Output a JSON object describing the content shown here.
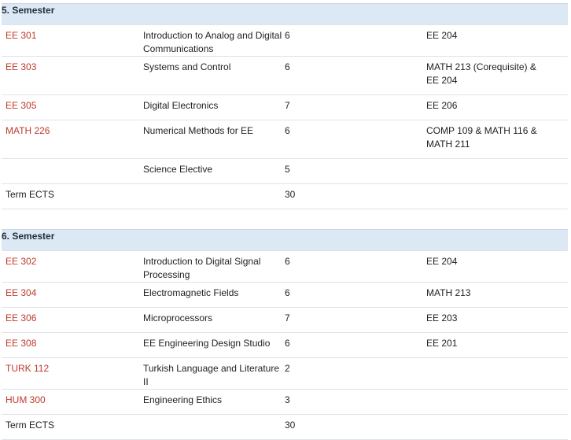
{
  "semesters": [
    {
      "title": "5. Semester",
      "courses": [
        {
          "code": "EE 301",
          "name": "Introduction to Analog and Digital Communications",
          "ects": "6",
          "prereq": "EE 204"
        },
        {
          "code": "EE 303",
          "name": "Systems and Control",
          "ects": "6",
          "prereq": "MATH 213 (Corequisite) & EE 204"
        },
        {
          "code": "EE 305",
          "name": "Digital Electronics",
          "ects": "7",
          "prereq": "EE 206"
        },
        {
          "code": "MATH 226",
          "name": "Numerical Methods for EE",
          "ects": "6",
          "prereq": "COMP 109 & MATH 116 & MATH 211"
        },
        {
          "code": "",
          "name": "Science Elective",
          "ects": "5",
          "prereq": ""
        }
      ],
      "total_label": "Term ECTS",
      "total_value": "30"
    },
    {
      "title": "6. Semester",
      "courses": [
        {
          "code": "EE 302",
          "name": "Introduction to Digital Signal Processing",
          "ects": "6",
          "prereq": "EE 204"
        },
        {
          "code": "EE 304",
          "name": "Electromagnetic Fields",
          "ects": "6",
          "prereq": "MATH 213"
        },
        {
          "code": "EE 306",
          "name": "Microprocessors",
          "ects": "7",
          "prereq": "EE 203"
        },
        {
          "code": "EE 308",
          "name": "EE Engineering Design Studio",
          "ects": "6",
          "prereq": "EE 201"
        },
        {
          "code": "TURK 112",
          "name": "Turkish Language and Literature II",
          "ects": "2",
          "prereq": ""
        },
        {
          "code": "HUM 300",
          "name": "Engineering Ethics",
          "ects": "3",
          "prereq": ""
        }
      ],
      "total_label": "Term ECTS",
      "total_value": "30"
    }
  ],
  "colors": {
    "header_bg": "#dce8f4",
    "link": "#c0392b",
    "row_border": "#dfe3e8"
  }
}
